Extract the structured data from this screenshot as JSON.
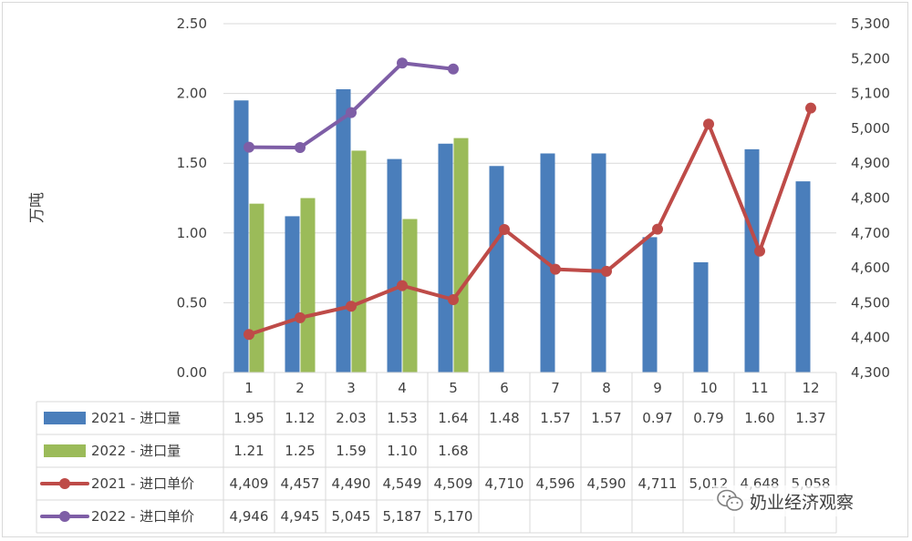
{
  "chart_data": {
    "type": "bar+line",
    "ylabel": "万吨",
    "ylim": [
      0,
      2.5
    ],
    "y_ticks": [
      "0.00",
      "0.50",
      "1.00",
      "1.50",
      "2.00",
      "2.50"
    ],
    "y2lim": [
      4300,
      5300
    ],
    "y2_ticks": [
      "4,300",
      "4,400",
      "4,500",
      "4,600",
      "4,700",
      "4,800",
      "4,900",
      "5,000",
      "5,100",
      "5,200",
      "5,300"
    ],
    "categories": [
      "1",
      "2",
      "3",
      "4",
      "5",
      "6",
      "7",
      "8",
      "9",
      "10",
      "11",
      "12"
    ],
    "bar_series": [
      {
        "name": "2021 - 进口量",
        "color": "#4a7ebb",
        "values": [
          1.95,
          1.12,
          2.03,
          1.53,
          1.64,
          1.48,
          1.57,
          1.57,
          0.97,
          0.79,
          1.6,
          1.37
        ],
        "labels": [
          "1.95",
          "1.12",
          "2.03",
          "1.53",
          "1.64",
          "1.48",
          "1.57",
          "1.57",
          "0.97",
          "0.79",
          "1.60",
          "1.37"
        ]
      },
      {
        "name": "2022 - 进口量",
        "color": "#9bbb59",
        "values": [
          1.21,
          1.25,
          1.59,
          1.1,
          1.68
        ],
        "labels": [
          "1.21",
          "1.25",
          "1.59",
          "1.10",
          "1.68"
        ]
      }
    ],
    "line_series": [
      {
        "name": "2021 - 进口单价",
        "color": "#be4b48",
        "values": [
          4409,
          4457,
          4490,
          4549,
          4509,
          4710,
          4596,
          4590,
          4711,
          5012,
          4648,
          5058
        ],
        "labels": [
          "4,409",
          "4,457",
          "4,490",
          "4,549",
          "4,509",
          "4,710",
          "4,596",
          "4,590",
          "4,711",
          "5,012",
          "4,648",
          "5,058"
        ]
      },
      {
        "name": "2022 - 进口单价",
        "color": "#7e5ea6",
        "values": [
          4946,
          4945,
          5045,
          5187,
          5170
        ],
        "labels": [
          "4,946",
          "4,945",
          "5,045",
          "5,187",
          "5,170"
        ]
      }
    ]
  },
  "watermark": {
    "text": "奶业经济观察",
    "icon": "wechat-icon"
  }
}
